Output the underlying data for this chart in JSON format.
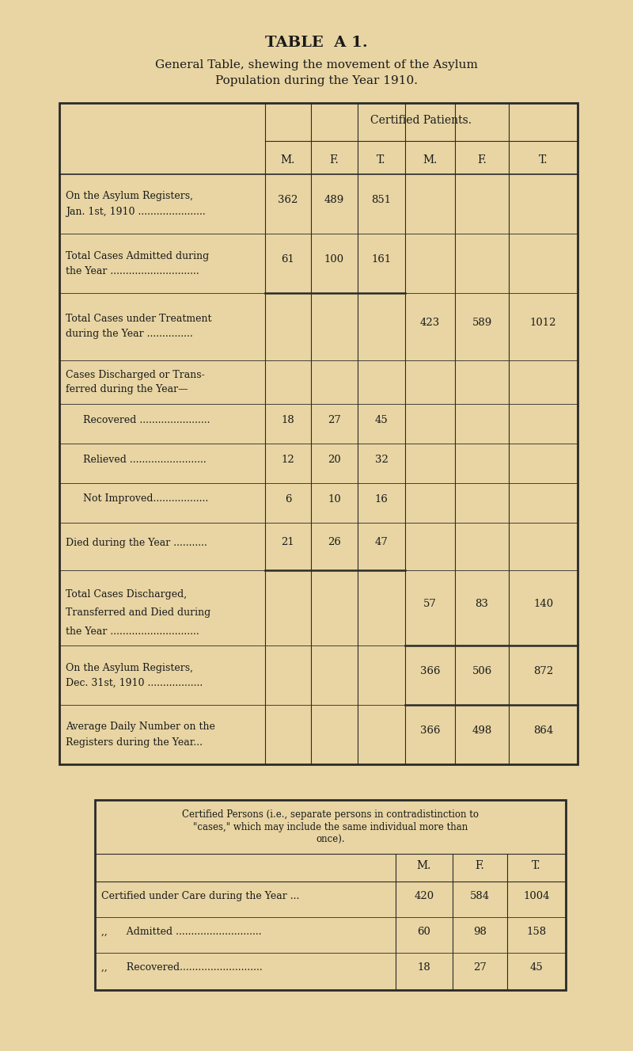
{
  "bg_color": "#e8d5a3",
  "title1": "TABLE  A 1.",
  "title2": "General Table, shewing the movement of the Asylum",
  "title3": "Population during the Year 1910.",
  "certified_patients_header": "Certified Patients.",
  "col_headers": [
    "M.",
    "F.",
    "T.",
    "M.",
    "F.",
    "T."
  ],
  "rows": [
    {
      "label_lines": [
        "On the Asylum Registers,",
        "Jan. 1st, 1910 ......................"
      ],
      "indent": 0,
      "vals": [
        "362",
        "489",
        "851",
        "",
        "",
        ""
      ],
      "group": 1
    },
    {
      "label_lines": [
        "Total Cases Admitted during",
        "the Year ............................."
      ],
      "indent": 0,
      "vals": [
        "61",
        "100",
        "161",
        "",
        "",
        ""
      ],
      "group": 1
    },
    {
      "label_lines": [
        "Total Cases under Treatment",
        "during the Year ..............."
      ],
      "indent": 0,
      "vals": [
        "",
        "",
        "",
        "423",
        "589",
        "1012"
      ],
      "group": 2
    },
    {
      "label_lines": [
        "Cases Discharged or Trans-",
        "ferred during the Year—"
      ],
      "indent": 0,
      "vals": [
        "",
        "",
        "",
        "",
        "",
        ""
      ],
      "group": 3
    },
    {
      "label_lines": [
        "Recovered ......................."
      ],
      "indent": 1,
      "vals": [
        "18",
        "27",
        "45",
        "",
        "",
        ""
      ],
      "group": 3
    },
    {
      "label_lines": [
        "Relieved ........................."
      ],
      "indent": 1,
      "vals": [
        "12",
        "20",
        "32",
        "",
        "",
        ""
      ],
      "group": 3
    },
    {
      "label_lines": [
        "Not Improved.................."
      ],
      "indent": 1,
      "vals": [
        "6",
        "10",
        "16",
        "",
        "",
        ""
      ],
      "group": 3
    },
    {
      "label_lines": [
        "Died during the Year ..........."
      ],
      "indent": 0,
      "vals": [
        "21",
        "26",
        "47",
        "",
        "",
        ""
      ],
      "group": 3
    },
    {
      "label_lines": [
        "Total Cases Discharged,",
        "Transferred and Died during",
        "the Year ............................."
      ],
      "indent": 0,
      "vals": [
        "",
        "",
        "",
        "57",
        "83",
        "140"
      ],
      "group": 4
    },
    {
      "label_lines": [
        "On the Asylum Registers,",
        "Dec. 31st, 1910 .................."
      ],
      "indent": 0,
      "vals": [
        "",
        "",
        "",
        "366",
        "506",
        "872"
      ],
      "group": 5
    },
    {
      "label_lines": [
        "Average Daily Number on the",
        "Registers during the Year..."
      ],
      "indent": 0,
      "vals": [
        "",
        "",
        "",
        "366",
        "498",
        "864"
      ],
      "group": 6
    }
  ],
  "certified_persons_note": [
    "Certified Persons (i.e., separate persons in contradistinction to",
    "\"cases,\" which may include the same individual more than",
    "once)."
  ],
  "cp_col_headers": [
    "M.",
    "F.",
    "T."
  ],
  "cp_rows": [
    {
      "label": "Certified under Care during the Year ...",
      "vals": [
        "420",
        "584",
        "1004"
      ]
    },
    {
      "label": ",,      Admitted ............................",
      "vals": [
        "60",
        "98",
        "158"
      ]
    },
    {
      "label": ",,      Recovered...........................",
      "vals": [
        "18",
        "27",
        "45"
      ]
    }
  ]
}
